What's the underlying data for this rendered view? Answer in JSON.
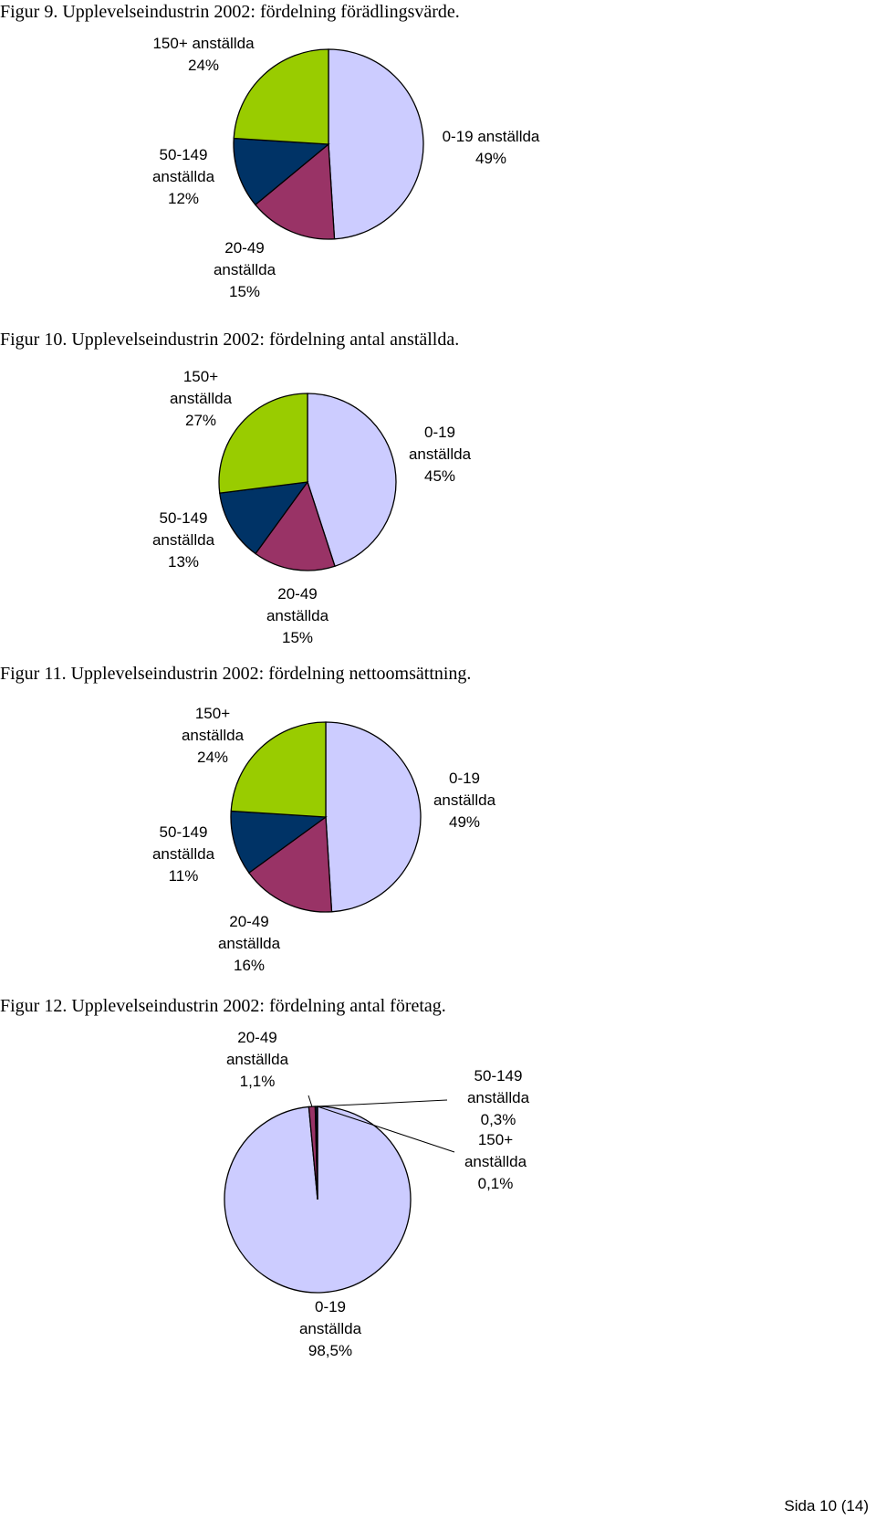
{
  "chart_data": [
    {
      "type": "pie",
      "title": "Figur 9. Upplevelseindustrin 2002: fördelning förädlingsvärde.",
      "categories": [
        "0-19 anställda",
        "20-49 anställda",
        "50-149 anställda",
        "150+ anställda"
      ],
      "values": [
        49,
        15,
        12,
        24
      ],
      "value_labels": [
        "49%",
        "15%",
        "12%",
        "24%"
      ],
      "colors": [
        "#ccccff",
        "#993366",
        "#003366",
        "#99cc00"
      ]
    },
    {
      "type": "pie",
      "title": "Figur 10. Upplevelseindustrin 2002: fördelning antal anställda.",
      "categories": [
        "0-19 anställda",
        "20-49 anställda",
        "50-149 anställda",
        "150+ anställda"
      ],
      "values": [
        45,
        15,
        13,
        27
      ],
      "value_labels": [
        "45%",
        "15%",
        "13%",
        "27%"
      ],
      "colors": [
        "#ccccff",
        "#993366",
        "#003366",
        "#99cc00"
      ]
    },
    {
      "type": "pie",
      "title": "Figur 11. Upplevelseindustrin 2002: fördelning nettoomsättning.",
      "categories": [
        "0-19 anställda",
        "20-49 anställda",
        "50-149 anställda",
        "150+ anställda"
      ],
      "values": [
        49,
        16,
        11,
        24
      ],
      "value_labels": [
        "49%",
        "16%",
        "11%",
        "24%"
      ],
      "colors": [
        "#ccccff",
        "#993366",
        "#003366",
        "#99cc00"
      ]
    },
    {
      "type": "pie",
      "title": "Figur 12. Upplevelseindustrin 2002: fördelning antal företag.",
      "categories": [
        "0-19 anställda",
        "20-49 anställda",
        "50-149 anställda",
        "150+ anställda"
      ],
      "values": [
        98.5,
        1.1,
        0.3,
        0.1
      ],
      "value_labels": [
        "98,5%",
        "1,1%",
        "0,3%",
        "0,1%"
      ],
      "colors": [
        "#ccccff",
        "#993366",
        "#003366",
        "#99cc00"
      ]
    }
  ],
  "footer": "Sida 10 (14)"
}
